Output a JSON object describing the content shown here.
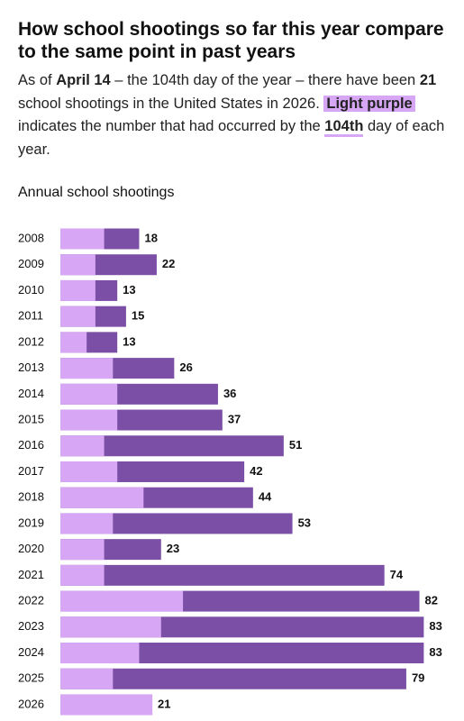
{
  "chart_data": {
    "type": "bar",
    "title": "How school shootings so far this year compare to the same point in past years",
    "subtitle": [
      "As of ",
      "April 14",
      " – the 104th day of the year – there have been ",
      "21",
      " school shootings in the United States in 2026. ",
      "Light purple",
      " indicates the number that had occurred by the ",
      "104th",
      " day of each year."
    ],
    "chart_title": "Annual school shootings",
    "categories": [
      "2008",
      "2009",
      "2010",
      "2011",
      "2012",
      "2013",
      "2014",
      "2015",
      "2016",
      "2017",
      "2018",
      "2019",
      "2020",
      "2021",
      "2022",
      "2023",
      "2024",
      "2025",
      "2026"
    ],
    "series": [
      {
        "color": "#7b4fa6",
        "values": [
          18,
          22,
          13,
          15,
          13,
          26,
          36,
          37,
          51,
          42,
          44,
          53,
          23,
          74,
          82,
          83,
          83,
          79,
          21
        ]
      },
      {
        "color": "#d7a6f5",
        "values": [
          10,
          8,
          8,
          8,
          6,
          12,
          13,
          13,
          10,
          13,
          19,
          12,
          10,
          10,
          28,
          23,
          18,
          12,
          21
        ]
      }
    ]
  }
}
